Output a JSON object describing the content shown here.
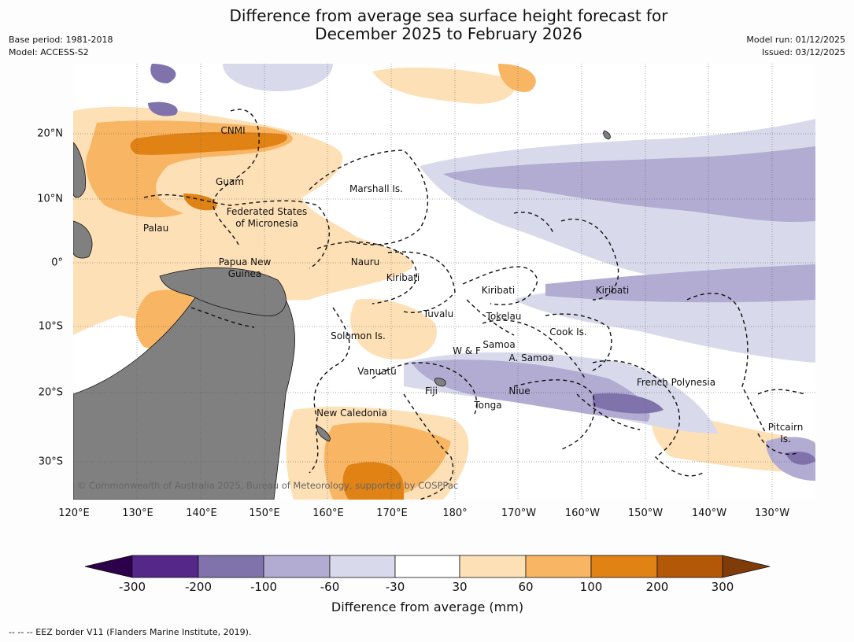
{
  "title_line1": "Difference from average sea surface height forecast for",
  "title_line2": "December 2025 to February 2026",
  "left_meta": [
    "Base period: 1981-2018",
    "Model: ACCESS-S2"
  ],
  "right_meta": [
    "Model run: 01/12/2025",
    "Issued: 03/12/2025"
  ],
  "lon_ticks": [
    "120°E",
    "130°E",
    "140°E",
    "150°E",
    "160°E",
    "170°E",
    "180°",
    "170°W",
    "160°W",
    "150°W",
    "140°W",
    "130°W"
  ],
  "lat_ticks": [
    "20°N",
    "10°N",
    "0°",
    "10°S",
    "20°S",
    "30°S"
  ],
  "places": {
    "cnmi": "CNMI",
    "guam": "Guam",
    "marshall": "Marshall Is.",
    "fsm1": "Federated States",
    "fsm2": "of Micronesia",
    "palau": "Palau",
    "nauru": "Nauru",
    "png1": "Papua New",
    "png2": "Guinea",
    "kiribati_w": "Kiribati",
    "kiribati_c": "Kiribati",
    "kiribati_e": "Kiribati",
    "tuvalu": "Tuvalu",
    "tokelau": "Tokelau",
    "cook": "Cook Is.",
    "solomon": "Solomon Is.",
    "wf": "W & F",
    "samoa": "Samoa",
    "asamoa": "A. Samoa",
    "vanuatu": "Vanuatu",
    "fiji": "Fiji",
    "niue": "Niue",
    "fp": "French Polynesia",
    "tonga": "Tonga",
    "newcal": "New Caledonia",
    "pitcairn1": "Pitcairn",
    "pitcairn2": "Is."
  },
  "copyright": "© Commonwealth of Australia 2025, Bureau of Meteorology, supported by COSPPac",
  "colorbar": {
    "ticks": [
      "-300",
      "-200",
      "-100",
      "-60",
      "-30",
      "30",
      "60",
      "100",
      "200",
      "300"
    ],
    "colors": [
      "#2d004b",
      "#542788",
      "#8073ac",
      "#b2abd2",
      "#d8daeb",
      "#ffffff",
      "#fee0b6",
      "#f8b664",
      "#e08214",
      "#b35806",
      "#7f3b08"
    ],
    "label": "Difference from average (mm)"
  },
  "footer": "--  --  -- EEZ border V11 (Flanders Marine Institute, 2019)."
}
